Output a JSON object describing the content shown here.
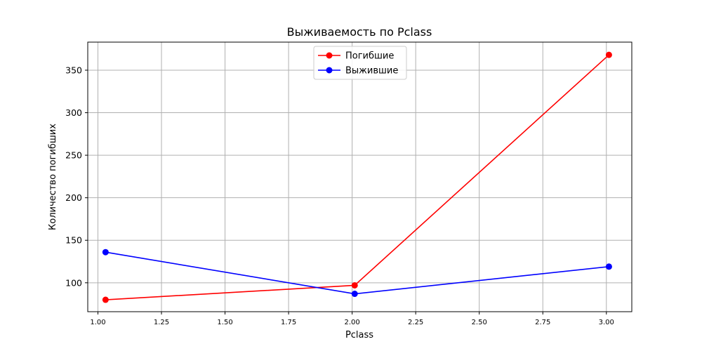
{
  "chart_data": {
    "type": "line",
    "title": "Выживаемость по Pclass",
    "xlabel": "Pclass",
    "ylabel": "Количество погибших",
    "xlim": [
      0.96,
      3.1
    ],
    "ylim": [
      66,
      383
    ],
    "x_ticks": [
      "1.00",
      "1.25",
      "1.50",
      "1.75",
      "2.00",
      "2.25",
      "2.50",
      "2.75",
      "3.00"
    ],
    "y_ticks": [
      "100",
      "150",
      "200",
      "250",
      "300",
      "350"
    ],
    "grid": true,
    "legend_position": "top-center",
    "series": [
      {
        "name": "Погибшие",
        "color": "#ff0000",
        "x": [
          1.03,
          2.01,
          3.01
        ],
        "y": [
          80,
          97,
          368
        ]
      },
      {
        "name": "Выжившие",
        "color": "#0000ff",
        "x": [
          1.03,
          2.01,
          3.01
        ],
        "y": [
          136,
          87,
          119
        ]
      }
    ]
  }
}
